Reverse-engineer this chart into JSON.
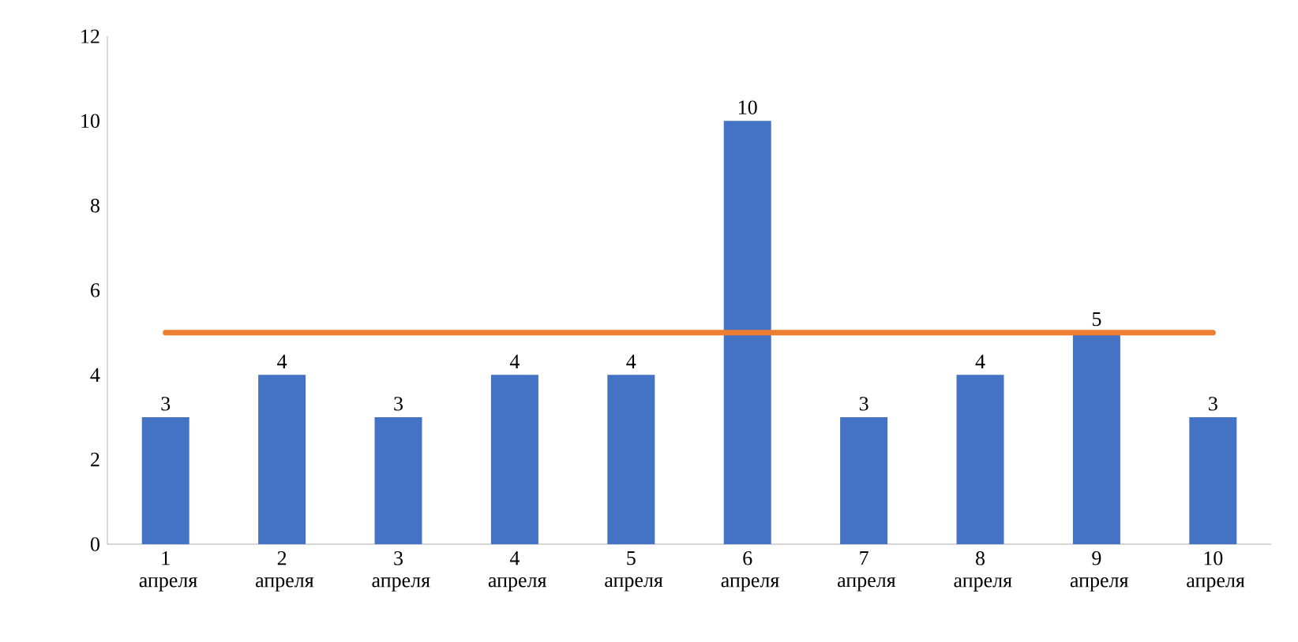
{
  "chart_data": {
    "type": "bar",
    "categories": [
      "1 апреля",
      "2 апреля",
      "3 апреля",
      "4 апреля",
      "5 апреля",
      "6 апреля",
      "7 апреля",
      "8 апреля",
      "9 апреля",
      "10 апреля"
    ],
    "series": [
      {
        "color": "#4472c4",
        "values": [
          3,
          4,
          3,
          4,
          4,
          10,
          3,
          4,
          5,
          3
        ],
        "value_labels": [
          "3",
          "4",
          "3",
          "4",
          "4",
          "10",
          "3",
          "4",
          "5",
          "3"
        ]
      },
      {
        "type": "line",
        "color": "#ed7d31",
        "values": [
          5,
          5,
          5,
          5,
          5,
          5,
          5,
          5,
          5,
          5
        ]
      }
    ],
    "ylim": [
      0,
      12
    ],
    "yticks": [
      0,
      2,
      4,
      6,
      8,
      10,
      12
    ]
  }
}
